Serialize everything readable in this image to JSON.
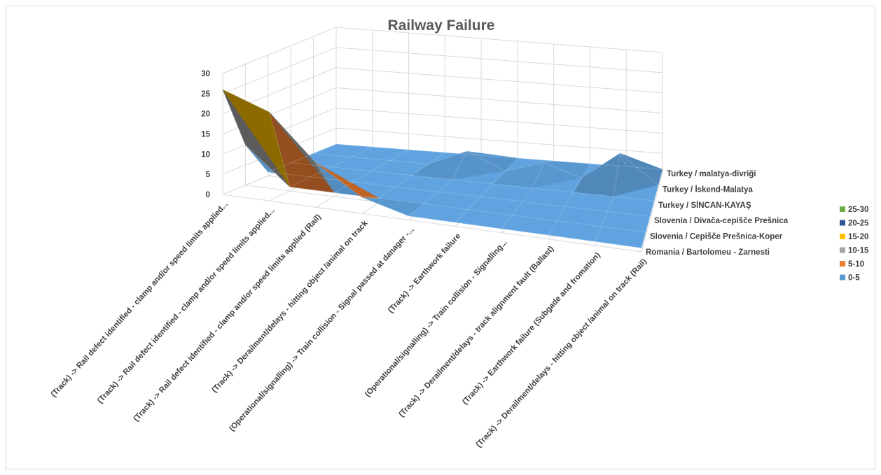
{
  "chart_data": {
    "type": "surface",
    "title": "Railway Failure",
    "categories": [
      "(Track) -> Rail defect identified - clamp and/or speed limits applied...",
      "(Track) -> Rail defect identified - clamp and/or speed limits applied...",
      "(Track) -> Rail defect identified - clamp and/or speed limits applied (Rail)",
      "(Track) -> Derailment/delays - hitting object /animal on track",
      "(Operational/signalling) -> Train collision - Signal passed at danager -...",
      "(Track) -> Earthwork failure",
      "(Operational/signalling) -> Train collision - Signalling...",
      "(Track) -> Derailment/delays - track alignment fault (Ballast)",
      "(Track) -> Earthwork failure (Subgade and fromation)",
      "(Track) -> Derailment/delays - hitting object /animal on track (Rail)"
    ],
    "series": [
      {
        "name": "Romania / Bartolomeu - Zarnesti",
        "values": [
          26,
          22,
          11,
          4,
          1,
          1,
          1,
          1,
          1,
          1
        ]
      },
      {
        "name": "Slovenia / Cepišče Prešnica-Koper",
        "values": [
          10,
          1,
          1,
          1,
          1,
          1,
          1,
          1,
          1,
          1
        ]
      },
      {
        "name": "Slovenia / Divača-cepišče Prešnica",
        "values": [
          1,
          1,
          1,
          1,
          1,
          1,
          1,
          1,
          1,
          1
        ]
      },
      {
        "name": "Turkey / SİNCAN-KAYAŞ",
        "values": [
          1,
          1,
          1,
          1,
          1,
          1,
          1,
          1,
          1,
          1
        ]
      },
      {
        "name": "Turkey / İskend-Malatya",
        "values": [
          1,
          1,
          1,
          1,
          5,
          1,
          4,
          1,
          8,
          1
        ]
      },
      {
        "name": "Turkey / malatya-divriği",
        "values": [
          1,
          1,
          1,
          1,
          1,
          1,
          1,
          1,
          1,
          1
        ]
      }
    ],
    "z_ticks": [
      "0",
      "5",
      "10",
      "15",
      "20",
      "25",
      "30"
    ],
    "zlim": [
      0,
      30
    ],
    "legend_position": "right",
    "legend": [
      {
        "label": "25-30",
        "color": "#70ad47"
      },
      {
        "label": "20-25",
        "color": "#2f5597"
      },
      {
        "label": "15-20",
        "color": "#ffc000"
      },
      {
        "label": "10-15",
        "color": "#a5a5a5"
      },
      {
        "label": "5-10",
        "color": "#ed7d31"
      },
      {
        "label": "0-5",
        "color": "#5b9bd5"
      }
    ]
  }
}
